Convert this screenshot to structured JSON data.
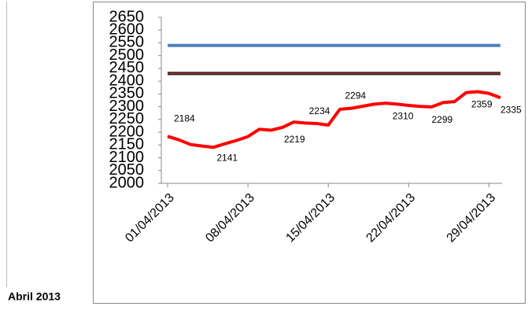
{
  "caption": "Abril 2013",
  "chart_data": {
    "type": "line",
    "categories": [
      "01/04/2013",
      null,
      null,
      null,
      null,
      null,
      null,
      "08/04/2013",
      null,
      null,
      null,
      null,
      null,
      null,
      "15/04/2013",
      null,
      null,
      null,
      null,
      null,
      null,
      "22/04/2013",
      null,
      null,
      null,
      null,
      null,
      null,
      "29/04/2013",
      null
    ],
    "series": [
      {
        "color": "#4f81bd",
        "values": [
          2540,
          2540,
          2540,
          2540,
          2540,
          2540,
          2540,
          2540,
          2540,
          2540,
          2540,
          2540,
          2540,
          2540,
          2540,
          2540,
          2540,
          2540,
          2540,
          2540,
          2540,
          2540,
          2540,
          2540,
          2540,
          2540,
          2540,
          2540,
          2540,
          2540
        ]
      },
      {
        "color": "#953735",
        "values": [
          2430,
          2430,
          2430,
          2430,
          2430,
          2430,
          2430,
          2430,
          2430,
          2430,
          2430,
          2430,
          2430,
          2430,
          2430,
          2430,
          2430,
          2430,
          2430,
          2430,
          2430,
          2430,
          2430,
          2430,
          2430,
          2430,
          2430,
          2430,
          2430,
          2430
        ]
      },
      {
        "color": "#ff0000",
        "values": [
          2184,
          2170,
          2152,
          2146,
          2141,
          2155,
          2168,
          2183,
          2212,
          2208,
          2219,
          2240,
          2236,
          2234,
          2228,
          2290,
          2294,
          2302,
          2310,
          2314,
          2310,
          2305,
          2301,
          2299,
          2316,
          2320,
          2355,
          2359,
          2352,
          2335
        ],
        "value_labels": [
          "2184",
          null,
          null,
          null,
          "2141",
          null,
          null,
          null,
          null,
          null,
          "2219",
          null,
          null,
          "2234",
          null,
          null,
          "2294",
          null,
          null,
          null,
          "2310",
          null,
          null,
          "2299",
          null,
          null,
          null,
          "2359",
          null,
          "2335"
        ]
      }
    ],
    "ylim": [
      2000,
      2650
    ],
    "yticks": [
      2000,
      2050,
      2100,
      2150,
      2200,
      2250,
      2300,
      2350,
      2400,
      2450,
      2500,
      2550,
      2600,
      2650
    ]
  }
}
